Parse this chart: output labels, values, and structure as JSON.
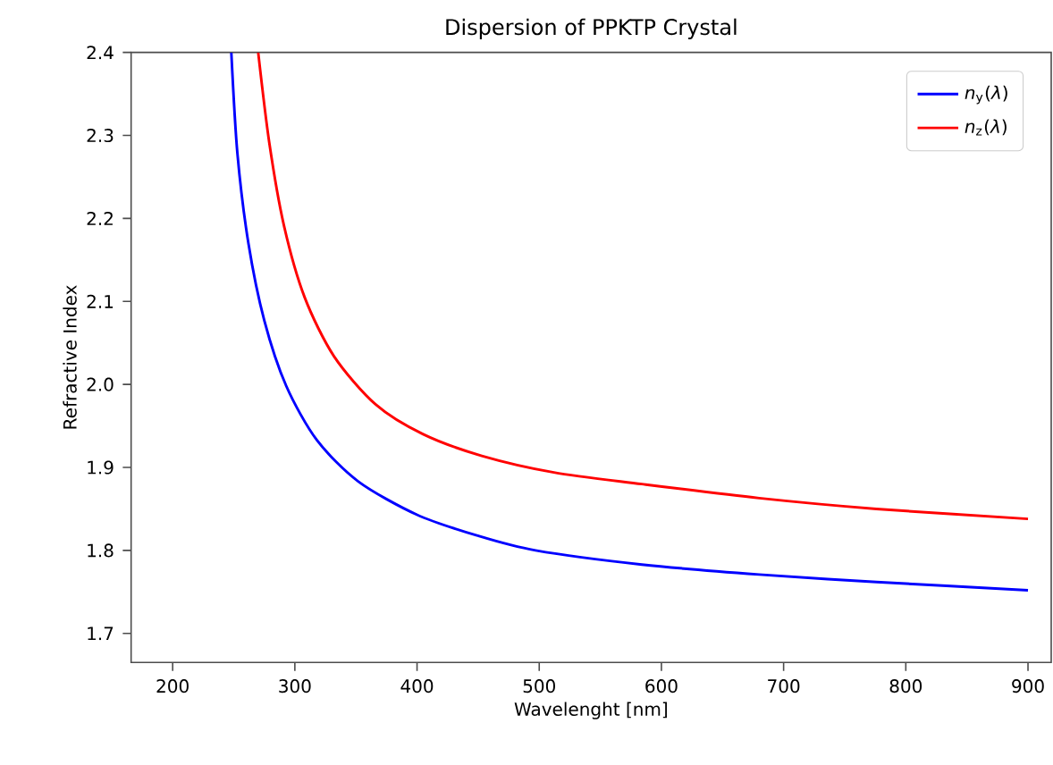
{
  "chart_data": {
    "type": "line",
    "title": "Dispersion of PPKTP Crystal",
    "xlabel": "Wavelenght [nm]",
    "ylabel": "Refractive Index",
    "xlim": [
      166,
      919
    ],
    "ylim": [
      1.665,
      2.4
    ],
    "xticks": [
      200,
      300,
      400,
      500,
      600,
      700,
      800,
      900
    ],
    "yticks": [
      1.7,
      1.8,
      1.9,
      {
        "value": 2.0,
        "label": "2.0"
      },
      2.1,
      2.2,
      2.3,
      2.4
    ],
    "legend": "top right",
    "grid": false,
    "marker": "none",
    "line_style": "solid",
    "series": [
      {
        "name": "*n*$_{y}$(*λ*)",
        "color": "#0000ff",
        "x": [
          248,
          253,
          262,
          275,
          293,
          318,
          352,
          400,
          449,
          497,
          584,
          680,
          776,
          900
        ],
        "values": [
          2.4,
          2.278,
          2.17,
          2.077,
          1.998,
          1.933,
          1.883,
          1.843,
          1.818,
          1.8,
          1.783,
          1.771,
          1.762,
          1.752
        ]
      },
      {
        "name": "*n*$_{z}$(*λ*)",
        "color": "#ff0000",
        "x": [
          270,
          279,
          291,
          308,
          332,
          366,
          405,
          453,
          512,
          584,
          680,
          776,
          900
        ],
        "values": [
          2.4,
          2.292,
          2.192,
          2.105,
          2.034,
          1.976,
          1.94,
          1.914,
          1.894,
          1.88,
          1.863,
          1.85,
          1.838
        ]
      }
    ]
  }
}
